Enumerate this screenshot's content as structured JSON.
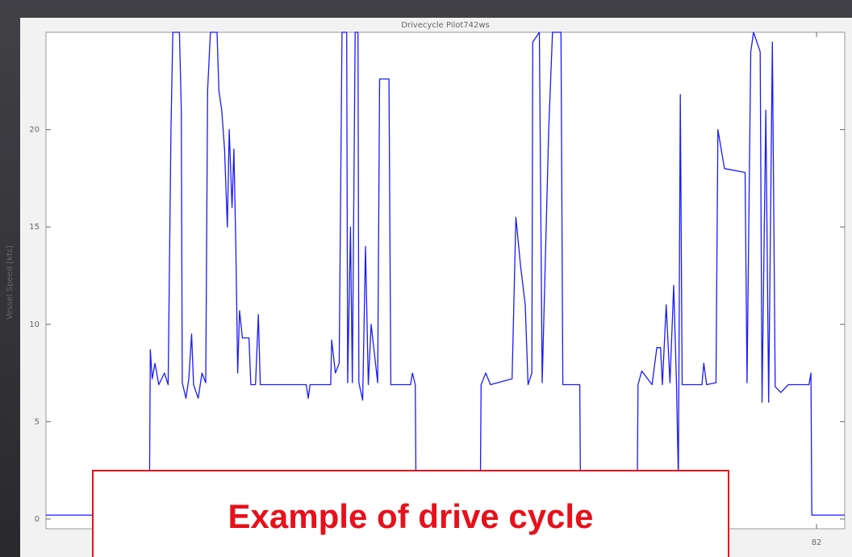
{
  "chart_data": {
    "type": "line",
    "title": "Drivecycle Pilot742ws",
    "y_label": "Vessel Speed [kts]",
    "annotation": "Example of drive cycle",
    "xlim": [
      0,
      85
    ],
    "xticks": [
      82
    ],
    "ylim": [
      -0.5,
      25
    ],
    "yticks": [
      0,
      5,
      10,
      15,
      20
    ],
    "grid": false,
    "series": [
      {
        "name": "Vessel speed",
        "color": "#1a1aff",
        "x": [
          0,
          11.0,
          11.1,
          11.3,
          11.6,
          12.0,
          12.6,
          13.0,
          13.3,
          13.5,
          14.2,
          14.4,
          14.5,
          14.9,
          15.2,
          15.5,
          15.7,
          16.2,
          16.6,
          17.0,
          17.2,
          17.5,
          18.2,
          18.4,
          18.7,
          19.0,
          19.3,
          19.5,
          19.8,
          20.0,
          20.2,
          20.4,
          20.6,
          20.9,
          21.6,
          21.8,
          22.3,
          22.6,
          22.8,
          27.7,
          27.9,
          28.1,
          30.3,
          30.4,
          30.8,
          31.2,
          31.5,
          32.0,
          32.1,
          32.4,
          32.6,
          32.9,
          33.2,
          33.3,
          33.7,
          34.0,
          34.3,
          34.6,
          35.3,
          35.5,
          36.5,
          36.7,
          38.8,
          39.0,
          39.3,
          39.4,
          46.2,
          46.3,
          46.8,
          47.3,
          49.6,
          50.0,
          50.5,
          51.0,
          51.3,
          51.7,
          51.8,
          52.5,
          52.8,
          53.5,
          53.9,
          54.8,
          55.0,
          56.8,
          56.9,
          62.9,
          63.0,
          63.4,
          64.5,
          65.0,
          65.4,
          65.6,
          66.0,
          66.4,
          66.8,
          67.1,
          67.3,
          67.5,
          67.7,
          69.8,
          70.0,
          70.3,
          71.3,
          71.5,
          72.2,
          74.4,
          74.6,
          75.0,
          75.3,
          76.0,
          76.2,
          76.6,
          76.9,
          77.3,
          77.6,
          78.2,
          79.0,
          81.2,
          81.4,
          81.5,
          85
        ],
        "values": [
          0.2,
          0.2,
          8.7,
          7.2,
          8.0,
          6.9,
          7.5,
          6.9,
          20,
          25,
          25,
          21,
          7,
          6.2,
          7.2,
          9.5,
          6.9,
          6.2,
          7.5,
          7.0,
          22,
          25,
          25,
          22,
          21,
          19,
          15,
          20,
          16,
          19,
          14,
          7.5,
          10.7,
          9.3,
          9.3,
          6.9,
          6.9,
          10.5,
          6.9,
          6.9,
          6.2,
          6.9,
          6.9,
          9.2,
          7.5,
          8.0,
          25,
          25,
          7.0,
          15,
          7,
          25,
          25,
          7,
          6.1,
          14,
          6.9,
          10,
          7,
          22.6,
          22.6,
          6.9,
          6.9,
          7.5,
          6.9,
          0,
          0,
          6.9,
          7.5,
          6.9,
          7.2,
          15.5,
          13,
          11,
          6.9,
          7.5,
          24.5,
          25,
          7,
          20,
          25,
          25,
          6.9,
          6.9,
          0,
          0,
          6.9,
          7.6,
          6.9,
          8.8,
          8.8,
          6.9,
          11,
          7,
          12,
          6.9,
          2,
          21.8,
          6.9,
          6.9,
          8,
          6.9,
          7,
          20,
          18,
          17.8,
          7,
          24,
          25,
          24,
          6,
          21,
          6,
          24.5,
          6.8,
          6.5,
          6.9,
          6.9,
          7.5,
          0.2,
          0.2
        ]
      }
    ]
  }
}
